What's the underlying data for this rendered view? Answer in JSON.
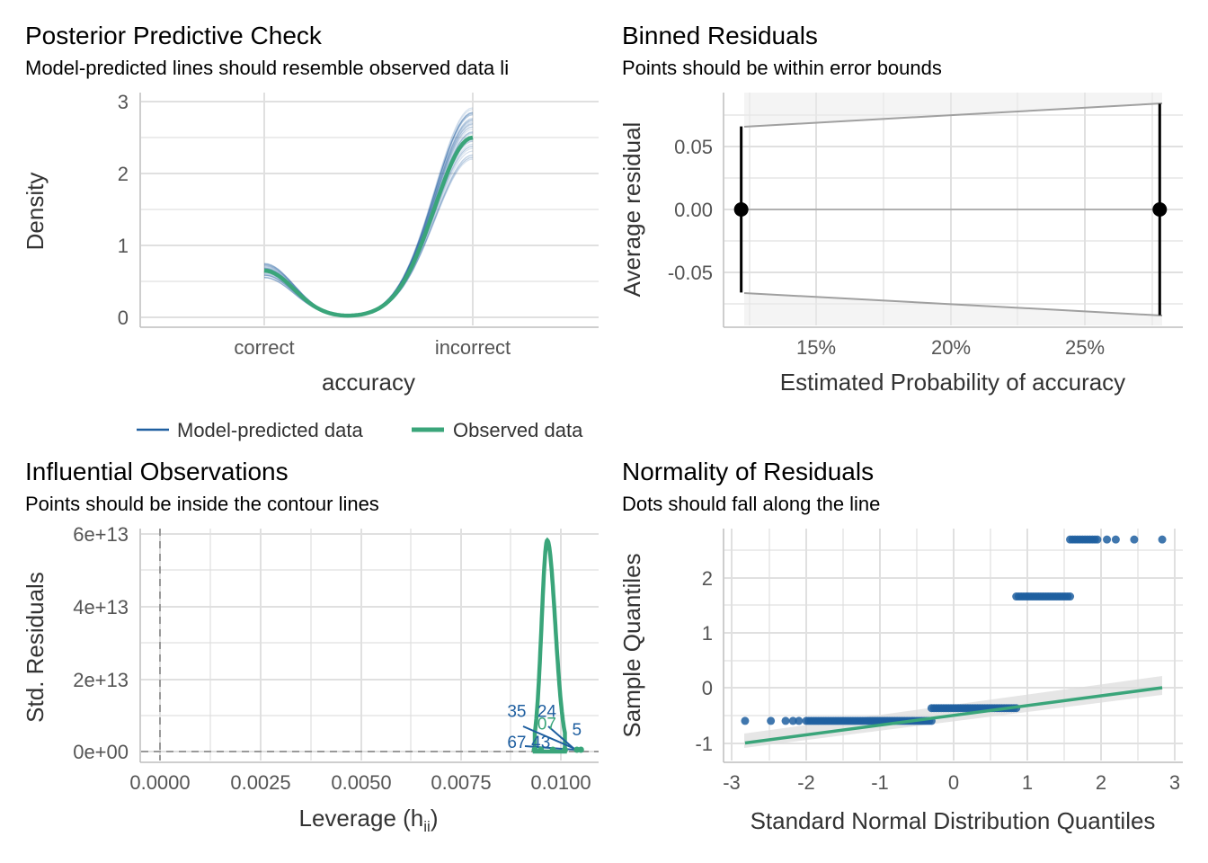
{
  "panels": {
    "ppc": {
      "title": "Posterior Predictive Check",
      "subtitle": "Model-predicted lines should resemble observed data li",
      "xlabel": "accuracy",
      "ylabel": "Density",
      "legend": [
        "Model-predicted data",
        "Observed data"
      ]
    },
    "binned": {
      "title": "Binned Residuals",
      "subtitle": "Points should be within error bounds",
      "xlabel": "Estimated Probability of accuracy",
      "ylabel": "Average residual"
    },
    "influential": {
      "title": "Influential Observations",
      "subtitle": "Points should be inside the contour lines",
      "xlabel": "Leverage (h",
      "xlabel_sub": "ii",
      "xlabel_close": ")",
      "ylabel": "Std. Residuals"
    },
    "normality": {
      "title": "Normality of Residuals",
      "subtitle": "Dots should fall along the line",
      "xlabel": "Standard Normal Distribution Quantiles",
      "ylabel": "Sample Quantiles"
    }
  },
  "colors": {
    "blue": "#1f5fa0",
    "green": "#3aa57a",
    "grid": "#e0e0e0",
    "axis_text": "#555555",
    "band": "#ebebeb"
  },
  "chart_data": [
    {
      "type": "line",
      "id": "ppc",
      "categories": [
        "correct",
        "incorrect"
      ],
      "ylim": [
        0,
        3.1
      ],
      "y_ticks": [
        "0",
        "1",
        "2",
        "3"
      ],
      "observed": {
        "name": "Observed data",
        "left_value": 0.65,
        "right_value": 2.5
      },
      "predicted": {
        "name": "Model-predicted data",
        "left_range": [
          0.55,
          0.75
        ],
        "right_range": [
          2.2,
          2.95
        ]
      }
    },
    {
      "type": "scatter",
      "id": "binned",
      "x_ticks": [
        "15%",
        "20%",
        "25%"
      ],
      "x_tick_values": [
        0.15,
        0.2,
        0.25
      ],
      "xlim": [
        0.118,
        0.287
      ],
      "ylim": [
        -0.093,
        0.093
      ],
      "y_ticks": [
        "0.05",
        "0.00",
        "-0.05"
      ],
      "y_tick_values": [
        0.05,
        0.0,
        -0.05
      ],
      "points": [
        {
          "x": 0.1245,
          "y": 0.0,
          "lower": -0.066,
          "upper": 0.066
        },
        {
          "x": 0.2785,
          "y": 0.0,
          "lower": -0.084,
          "upper": 0.084
        }
      ],
      "bounds": {
        "left": 0.066,
        "right": 0.085
      }
    },
    {
      "type": "scatter",
      "id": "influential",
      "x_ticks": [
        "0.0000",
        "0.0025",
        "0.0050",
        "0.0075",
        "0.0100"
      ],
      "x_tick_values": [
        0,
        0.0025,
        0.005,
        0.0075,
        0.01
      ],
      "xlim": [
        -0.00028,
        0.0106
      ],
      "y_ticks": [
        "0e+00",
        "2e+13",
        "4e+13",
        "6e+13"
      ],
      "y_tick_values": [
        0,
        20000000000000.0,
        40000000000000.0,
        60000000000000.0
      ],
      "ylim": [
        -4000000000000.0,
        61000000000000.0
      ],
      "curve_peak": {
        "x": 0.00966,
        "y": 58000000000000.0
      },
      "curve_base": [
        0.00935,
        0.0101
      ],
      "labels": [
        {
          "text": "35",
          "x": 0.0089,
          "y": 9500000000000.0,
          "color": "blue"
        },
        {
          "text": "24",
          "x": 0.00965,
          "y": 9500000000000.0,
          "color": "blue"
        },
        {
          "text": "07",
          "x": 0.00965,
          "y": 6000000000000.0,
          "color": "green"
        },
        {
          "text": "5",
          "x": 0.0104,
          "y": 4500000000000.0,
          "color": "blue"
        },
        {
          "text": "67",
          "x": 0.0089,
          "y": 1000000000000.0,
          "color": "blue"
        },
        {
          "text": "43",
          "x": 0.0095,
          "y": 1000000000000.0,
          "color": "blue"
        }
      ]
    },
    {
      "type": "scatter",
      "id": "normality",
      "x_ticks": [
        "-3",
        "-2",
        "-1",
        "0",
        "1",
        "2",
        "3"
      ],
      "x_tick_values": [
        -3,
        -2,
        -1,
        0,
        1,
        2,
        3
      ],
      "xlim": [
        -3.1,
        3.1
      ],
      "y_ticks": [
        "2",
        "1",
        "0",
        "-1"
      ],
      "y_tick_values": [
        2,
        1,
        0,
        -1
      ],
      "ylim": [
        -1.35,
        2.85
      ],
      "groups": [
        {
          "y": -0.6,
          "x_from": -2.0,
          "x_to": -0.3,
          "extra": [
            -2.83,
            -2.48,
            -2.28,
            -2.18,
            -2.1
          ]
        },
        {
          "y": -0.37,
          "x_from": -0.3,
          "x_to": 0.85,
          "extra": []
        },
        {
          "y": 1.65,
          "x_from": 0.85,
          "x_to": 1.58,
          "extra": []
        },
        {
          "y": 2.68,
          "x_from": 1.58,
          "x_to": 1.95,
          "extra": [
            2.08,
            2.2,
            2.45,
            2.83
          ]
        }
      ],
      "line": {
        "x": [
          -2.83,
          2.83
        ],
        "y": [
          -1.0,
          0.0
        ]
      }
    }
  ]
}
